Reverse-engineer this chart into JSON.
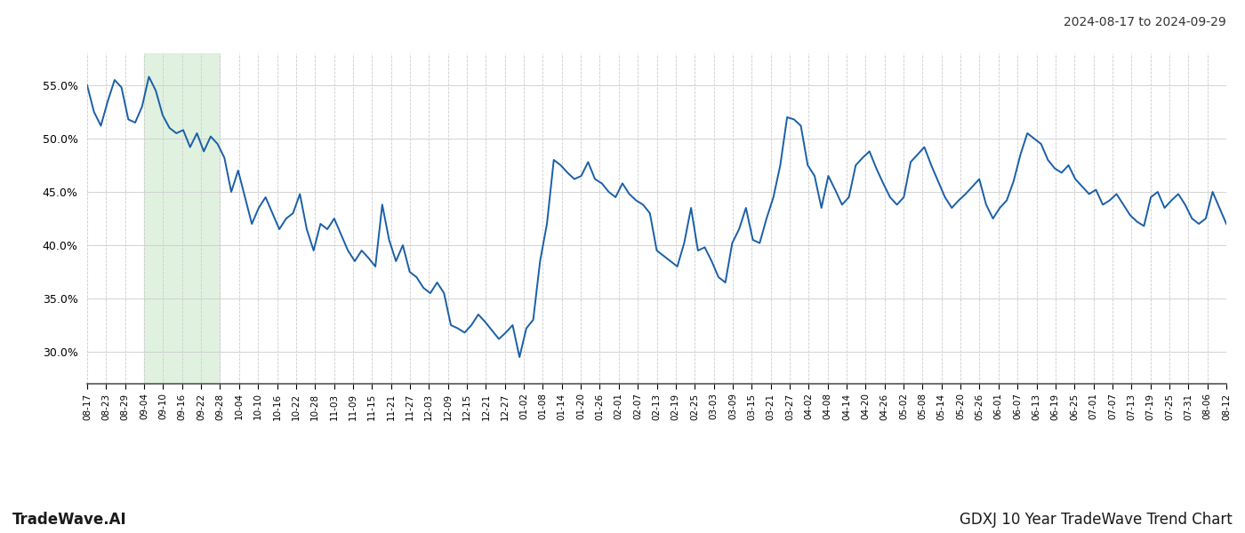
{
  "title_right": "2024-08-17 to 2024-09-29",
  "footer_left": "TradeWave.AI",
  "footer_right": "GDXJ 10 Year TradeWave Trend Chart",
  "line_color": "#1a5fa8",
  "shade_color": "#d4ecd4",
  "background_color": "#ffffff",
  "grid_color": "#cccccc",
  "ylim": [
    27.0,
    58.0
  ],
  "yticks": [
    30.0,
    35.0,
    40.0,
    45.0,
    50.0,
    55.0
  ],
  "shade_start_label": "09-04",
  "shade_end_label": "09-28",
  "x_labels": [
    "08-17",
    "08-23",
    "08-29",
    "09-04",
    "09-10",
    "09-16",
    "09-22",
    "09-28",
    "10-04",
    "10-10",
    "10-16",
    "10-22",
    "10-28",
    "11-03",
    "11-09",
    "11-15",
    "11-21",
    "11-27",
    "12-03",
    "12-09",
    "12-15",
    "12-21",
    "12-27",
    "01-02",
    "01-08",
    "01-14",
    "01-20",
    "01-26",
    "02-01",
    "02-07",
    "02-13",
    "02-19",
    "02-25",
    "03-03",
    "03-09",
    "03-15",
    "03-21",
    "03-27",
    "04-02",
    "04-08",
    "04-14",
    "04-20",
    "04-26",
    "05-02",
    "05-08",
    "05-14",
    "05-20",
    "05-26",
    "06-01",
    "06-07",
    "06-13",
    "06-19",
    "06-25",
    "07-01",
    "07-07",
    "07-13",
    "07-19",
    "07-25",
    "07-31",
    "08-06",
    "08-12"
  ],
  "values": [
    55.0,
    52.5,
    51.2,
    53.5,
    55.5,
    54.8,
    51.8,
    51.5,
    53.0,
    55.8,
    54.5,
    52.2,
    51.0,
    50.5,
    50.8,
    49.2,
    50.5,
    48.8,
    50.2,
    49.5,
    48.2,
    45.0,
    47.0,
    44.5,
    42.0,
    43.5,
    44.5,
    43.0,
    41.5,
    42.5,
    43.0,
    44.8,
    41.5,
    39.5,
    42.0,
    41.5,
    42.5,
    41.0,
    39.5,
    38.5,
    39.5,
    38.8,
    38.0,
    43.8,
    40.5,
    38.5,
    40.0,
    37.5,
    37.0,
    36.0,
    35.5,
    36.5,
    35.5,
    32.5,
    32.2,
    31.8,
    32.5,
    33.5,
    32.8,
    32.0,
    31.2,
    31.8,
    32.5,
    29.5,
    32.2,
    33.0,
    38.5,
    42.0,
    48.0,
    47.5,
    46.8,
    46.2,
    46.5,
    47.8,
    46.2,
    45.8,
    45.0,
    44.5,
    45.8,
    44.8,
    44.2,
    43.8,
    43.0,
    39.5,
    39.0,
    38.5,
    38.0,
    40.2,
    43.5,
    39.5,
    39.8,
    38.5,
    37.0,
    36.5,
    40.2,
    41.5,
    43.5,
    40.5,
    40.2,
    42.5,
    44.5,
    47.5,
    52.0,
    51.8,
    51.2,
    47.5,
    46.5,
    43.5,
    46.5,
    45.2,
    43.8,
    44.5,
    47.5,
    48.2,
    48.8,
    47.2,
    45.8,
    44.5,
    43.8,
    44.5,
    47.8,
    48.5,
    49.2,
    47.5,
    46.0,
    44.5,
    43.5,
    44.2,
    44.8,
    45.5,
    46.2,
    43.8,
    42.5,
    43.5,
    44.2,
    46.0,
    48.5,
    50.5,
    50.0,
    49.5,
    48.0,
    47.2,
    46.8,
    47.5,
    46.2,
    45.5,
    44.8,
    45.2,
    43.8,
    44.2,
    44.8,
    43.8,
    42.8,
    42.2,
    41.8,
    44.5,
    45.0,
    43.5,
    44.2,
    44.8,
    43.8,
    42.5,
    42.0,
    42.5,
    45.0,
    43.5,
    42.0
  ]
}
